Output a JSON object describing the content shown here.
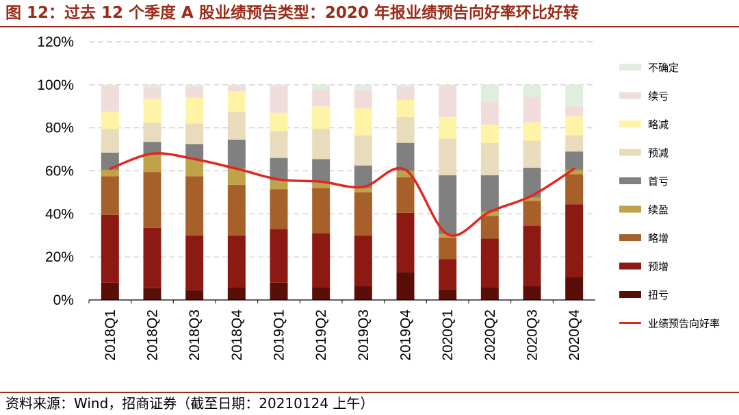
{
  "figure": {
    "title": "图 12：过去 12 个季度 A 股业绩预告类型：2020 年报业绩预告向好率环比好转",
    "source": "资料来源：Wind，招商证券（截至日期：20210124 上午）"
  },
  "colors": {
    "不确定": "#dfeedd",
    "续亏": "#f1dcdc",
    "略减": "#fff3a6",
    "预减": "#e9dcbc",
    "首亏": "#808080",
    "续盈": "#bfa24a",
    "略增": "#a8602a",
    "预增": "#8c1a12",
    "扭亏": "#5a0e08",
    "line": "#e0281e",
    "grid": "#c8c8c8"
  },
  "chart_data": {
    "type": "bar",
    "stacked": true,
    "title": "过去 12 个季度 A 股业绩预告类型",
    "categories": [
      "2018Q1",
      "2018Q2",
      "2018Q3",
      "2018Q4",
      "2019Q1",
      "2019Q2",
      "2019Q3",
      "2019Q4",
      "2020Q1",
      "2020Q2",
      "2020Q3",
      "2020Q4"
    ],
    "y_ticks": [
      "0%",
      "20%",
      "40%",
      "60%",
      "80%",
      "100%",
      "120%"
    ],
    "ylim": [
      0,
      120
    ],
    "grid": true,
    "legend_position": "right",
    "series": [
      {
        "name": "扭亏",
        "values": [
          8,
          5.5,
          4.5,
          6,
          8,
          6,
          6.5,
          13,
          5,
          6,
          6.5,
          10.5
        ]
      },
      {
        "name": "预增",
        "values": [
          31.5,
          28,
          25.5,
          24,
          25,
          25,
          23.5,
          27.5,
          14,
          22.5,
          28,
          34
        ]
      },
      {
        "name": "略增",
        "values": [
          18,
          26,
          27.5,
          23.5,
          18.5,
          21,
          20,
          16.5,
          10,
          10.5,
          11.5,
          14
        ]
      },
      {
        "name": "续盈",
        "values": [
          3,
          8,
          8,
          7.5,
          4,
          2.5,
          2,
          3,
          1.5,
          2,
          1.5,
          2
        ]
      },
      {
        "name": "首亏",
        "values": [
          8,
          6,
          7,
          13.5,
          10.5,
          11,
          10.5,
          13,
          27.5,
          17,
          14,
          8.5
        ]
      },
      {
        "name": "预减",
        "values": [
          11,
          9,
          9.5,
          13,
          12.5,
          14,
          14,
          12,
          17,
          15,
          12.5,
          7.5
        ]
      },
      {
        "name": "略减",
        "values": [
          8,
          11,
          12,
          9.5,
          8.5,
          10.5,
          12.5,
          8,
          10,
          8.5,
          8.5,
          9
        ]
      },
      {
        "name": "续亏",
        "values": [
          12.5,
          5,
          5,
          2.5,
          12.5,
          8,
          8.5,
          6,
          15,
          10.5,
          12,
          4.5
        ]
      },
      {
        "name": "不确定",
        "values": [
          0,
          1.5,
          1,
          0.5,
          0.5,
          2,
          2.5,
          1,
          0,
          8,
          5.5,
          10
        ]
      }
    ],
    "line_series": {
      "name": "业绩预告向好率",
      "values": [
        61,
        68,
        65.5,
        61,
        56,
        55,
        52.5,
        60.5,
        30.5,
        41,
        48.5,
        61
      ]
    },
    "legend": [
      "不确定",
      "续亏",
      "略减",
      "预减",
      "首亏",
      "续盈",
      "略增",
      "预增",
      "扭亏",
      "业绩预告向好率"
    ]
  }
}
